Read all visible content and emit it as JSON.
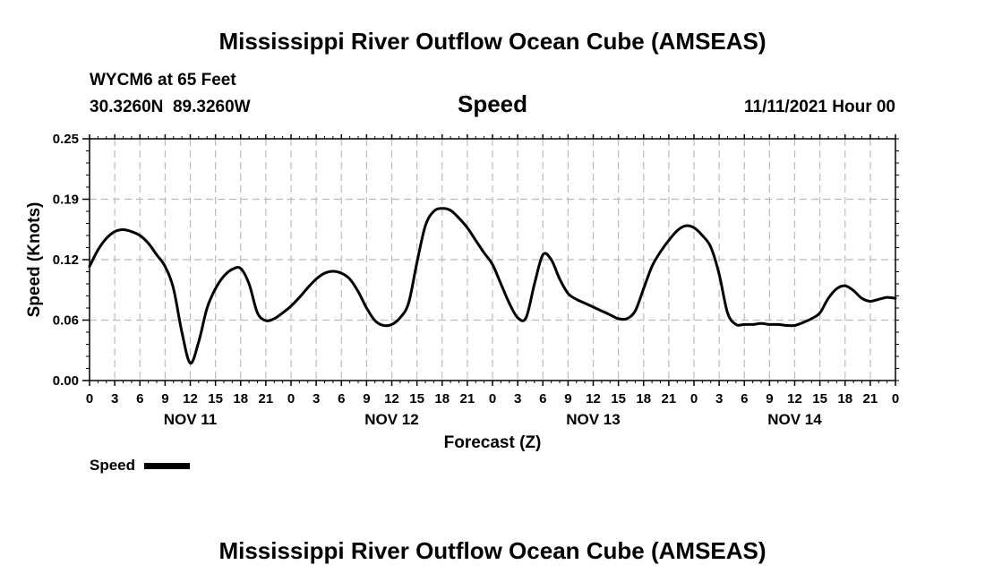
{
  "page": {
    "title_top": "Mississippi River Outflow Ocean Cube (AMSEAS)",
    "title_bottom": "Mississippi River Outflow Ocean Cube (AMSEAS)",
    "station": "WYCM6 at 65 Feet",
    "coords": "30.3260N  89.3260W",
    "datetime": "11/11/2021 Hour 00"
  },
  "chart_data": {
    "type": "line",
    "title": "Speed",
    "xlabel": "Forecast (Z)",
    "ylabel": "Speed (Knots)",
    "ylim": [
      0,
      0.25
    ],
    "xlim": [
      0,
      96
    ],
    "yticks": [
      "0.00",
      "0.06",
      "0.12",
      "0.19",
      "0.25"
    ],
    "ytick_values": [
      0,
      0.0625,
      0.125,
      0.1875,
      0.25
    ],
    "xtick_labels": [
      "0",
      "3",
      "6",
      "9",
      "12",
      "15",
      "18",
      "21",
      "0",
      "3",
      "6",
      "9",
      "12",
      "15",
      "18",
      "21",
      "0",
      "3",
      "6",
      "9",
      "12",
      "15",
      "18",
      "21",
      "0",
      "3",
      "6",
      "9",
      "12",
      "15",
      "18",
      "21",
      "0"
    ],
    "day_labels": [
      "NOV 11",
      "NOV 12",
      "NOV 13",
      "NOV 14"
    ],
    "grid": true,
    "legend": "bottom-left",
    "series": [
      {
        "name": "Speed",
        "color": "#000000",
        "x": [
          0,
          1,
          2,
          3,
          4,
          5,
          6,
          7,
          8,
          9,
          10,
          11,
          12,
          13,
          14,
          15,
          16,
          17,
          18,
          19,
          20,
          21,
          22,
          23,
          24,
          25,
          26,
          27,
          28,
          29,
          30,
          31,
          32,
          33,
          34,
          35,
          36,
          37,
          38,
          39,
          40,
          41,
          42,
          43,
          44,
          45,
          46,
          47,
          48,
          49,
          50,
          51,
          52,
          53,
          54,
          55,
          56,
          57,
          58,
          59,
          60,
          61,
          62,
          63,
          64,
          65,
          66,
          67,
          68,
          69,
          70,
          71,
          72,
          73,
          74,
          75,
          76,
          77,
          78,
          79,
          80,
          81,
          82,
          83,
          84,
          85,
          86,
          87,
          88,
          89,
          90,
          91,
          92,
          93,
          94,
          95,
          96
        ],
        "values": [
          0.118,
          0.135,
          0.147,
          0.154,
          0.156,
          0.154,
          0.15,
          0.142,
          0.13,
          0.118,
          0.095,
          0.05,
          0.018,
          0.04,
          0.075,
          0.095,
          0.108,
          0.115,
          0.116,
          0.1,
          0.07,
          0.062,
          0.064,
          0.07,
          0.077,
          0.086,
          0.096,
          0.105,
          0.111,
          0.113,
          0.111,
          0.105,
          0.092,
          0.075,
          0.062,
          0.057,
          0.058,
          0.065,
          0.08,
          0.122,
          0.16,
          0.175,
          0.178,
          0.176,
          0.168,
          0.158,
          0.145,
          0.132,
          0.12,
          0.1,
          0.08,
          0.065,
          0.065,
          0.1,
          0.13,
          0.125,
          0.105,
          0.09,
          0.084,
          0.08,
          0.076,
          0.072,
          0.068,
          0.064,
          0.064,
          0.072,
          0.095,
          0.118,
          0.133,
          0.145,
          0.155,
          0.16,
          0.158,
          0.15,
          0.138,
          0.11,
          0.07,
          0.058,
          0.058,
          0.058,
          0.059,
          0.058,
          0.058,
          0.057,
          0.057,
          0.06,
          0.064,
          0.07,
          0.085,
          0.095,
          0.098,
          0.093,
          0.085,
          0.082,
          0.084,
          0.086,
          0.085
        ]
      }
    ]
  }
}
